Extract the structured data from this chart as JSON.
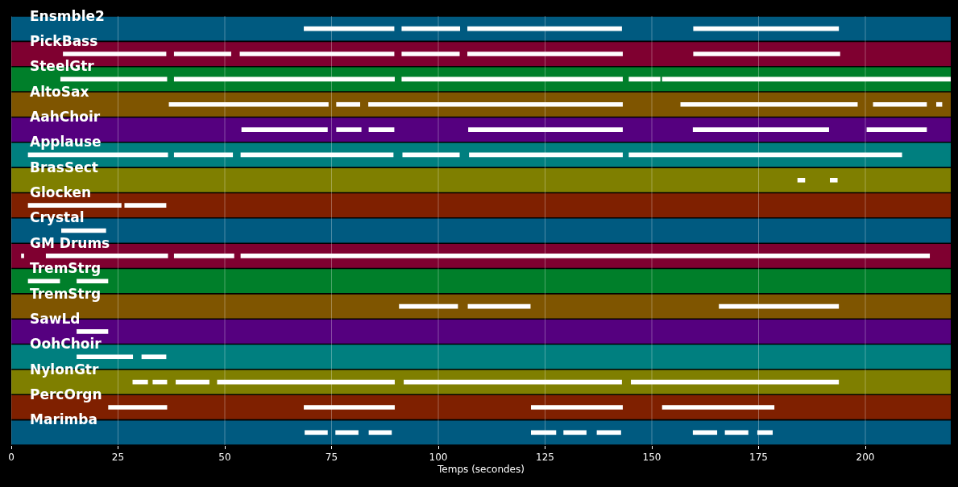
{
  "chart_data": {
    "type": "bar",
    "orientation": "horizontal",
    "xlabel": "Temps (secondes)",
    "categories": [
      "Ensmble2",
      "PickBass",
      "SteelGtr",
      "AltoSax",
      "AahChoir",
      "Applause",
      "BrasSect",
      "Glocken",
      "Crystal",
      "GM Drums",
      "TremStrg",
      "TremStrg",
      "SawLd",
      "OohChoir",
      "NylonGtr",
      "PercOrgn",
      "Marimba"
    ],
    "xlim": [
      0,
      220
    ],
    "xticks": [
      0,
      25,
      50,
      75,
      100,
      125,
      150,
      175,
      200
    ],
    "grid": "x",
    "series": [
      {
        "colors": [
          "#005a80",
          "#7f0030",
          "#007f2a",
          "#7f5500",
          "#55007f",
          "#007f7f",
          "#7f7f00",
          "#7f2000",
          "#005a80",
          "#7f0030",
          "#007f2a",
          "#7f5500",
          "#55007f",
          "#007f7f",
          "#7f7f00",
          "#7f2000",
          "#005a80"
        ],
        "base": [
          0,
          0,
          0,
          0,
          0,
          0,
          0,
          0,
          0,
          0,
          0,
          0,
          0,
          0,
          0,
          0,
          0
        ],
        "values": [
          220,
          220,
          220,
          220,
          220,
          220,
          220,
          220,
          220,
          220,
          220,
          220,
          220,
          220,
          220,
          220,
          220
        ]
      },
      {
        "color": "#ffffff",
        "base": [
          68.5,
          12.1,
          11.5,
          36.9,
          53.9,
          3.9,
          184.1,
          3.9,
          11.7,
          2.3,
          3.9,
          90.8,
          15.3,
          15.3,
          28.4,
          22.7,
          68.7
        ],
        "values": [
          21.2,
          24.2,
          25.0,
          37.4,
          20.2,
          32.8,
          1.8,
          21.9,
          10.5,
          0.7,
          7.5,
          13.8,
          7.4,
          13.2,
          3.6,
          13.8,
          5.4
        ]
      },
      {
        "color": "#ffffff",
        "base": [
          91.4,
          38.1,
          38.1,
          76.1,
          76.1,
          38.1,
          191.7,
          26.5,
          null,
          8.1,
          15.3,
          106.9,
          null,
          30.5,
          33.1,
          68.5,
          75.9
        ],
        "values": [
          13.7,
          13.4,
          51.7,
          5.6,
          5.9,
          13.8,
          1.8,
          9.8,
          null,
          28.6,
          7.4,
          14.7,
          null,
          5.8,
          3.4,
          21.3,
          5.4
        ]
      },
      {
        "color": "#ffffff",
        "base": [
          106.8,
          53.5,
          91.4,
          83.6,
          83.7,
          53.7,
          null,
          null,
          null,
          38.1,
          null,
          165.7,
          null,
          null,
          38.5,
          121.7,
          83.7
        ],
        "values": [
          36.2,
          36.2,
          51.8,
          59.6,
          6.0,
          35.8,
          null,
          null,
          null,
          14.1,
          null,
          28.1,
          null,
          null,
          7.9,
          21.5,
          5.4
        ]
      },
      {
        "color": "#ffffff",
        "base": [
          159.7,
          91.4,
          144.6,
          156.7,
          107.0,
          91.6,
          null,
          null,
          null,
          53.7,
          null,
          null,
          null,
          null,
          48.2,
          152.4,
          121.7
        ],
        "values": [
          34.1,
          13.6,
          7.4,
          41.5,
          36.2,
          13.4,
          null,
          null,
          null,
          161.4,
          null,
          null,
          null,
          null,
          41.6,
          26.3,
          5.9
        ]
      },
      {
        "color": "#ffffff",
        "base": [
          null,
          106.8,
          152.4,
          201.8,
          159.6,
          107.2,
          null,
          null,
          null,
          null,
          null,
          null,
          null,
          null,
          91.9,
          null,
          129.3
        ],
        "values": [
          null,
          36.4,
          67.6,
          12.6,
          31.9,
          36.0,
          null,
          null,
          null,
          null,
          null,
          null,
          null,
          null,
          51.1,
          null,
          5.4
        ]
      },
      {
        "color": "#ffffff",
        "base": [
          null,
          159.7,
          null,
          216.6,
          200.3,
          144.6,
          null,
          null,
          null,
          null,
          null,
          null,
          null,
          null,
          145.1,
          null,
          137.1
        ],
        "values": [
          null,
          34.4,
          null,
          1.4,
          14.1,
          64.0,
          null,
          null,
          null,
          null,
          null,
          null,
          null,
          null,
          48.7,
          null,
          5.7
        ]
      },
      {
        "color": "#ffffff",
        "base": [
          null,
          null,
          null,
          null,
          null,
          null,
          null,
          null,
          null,
          null,
          null,
          null,
          null,
          null,
          null,
          null,
          159.6
        ],
        "values": [
          null,
          null,
          null,
          null,
          null,
          null,
          null,
          null,
          null,
          null,
          null,
          null,
          null,
          null,
          null,
          null,
          5.7
        ]
      },
      {
        "color": "#ffffff",
        "base": [
          null,
          null,
          null,
          null,
          null,
          null,
          null,
          null,
          null,
          null,
          null,
          null,
          null,
          null,
          null,
          null,
          167.1
        ],
        "values": [
          null,
          null,
          null,
          null,
          null,
          null,
          null,
          null,
          null,
          null,
          null,
          null,
          null,
          null,
          null,
          null,
          5.5
        ]
      },
      {
        "color": "#ffffff",
        "base": [
          null,
          null,
          null,
          null,
          null,
          null,
          null,
          null,
          null,
          null,
          null,
          null,
          null,
          null,
          null,
          null,
          174.7
        ],
        "values": [
          null,
          null,
          null,
          null,
          null,
          null,
          null,
          null,
          null,
          null,
          null,
          null,
          null,
          null,
          null,
          null,
          3.6
        ]
      }
    ]
  }
}
